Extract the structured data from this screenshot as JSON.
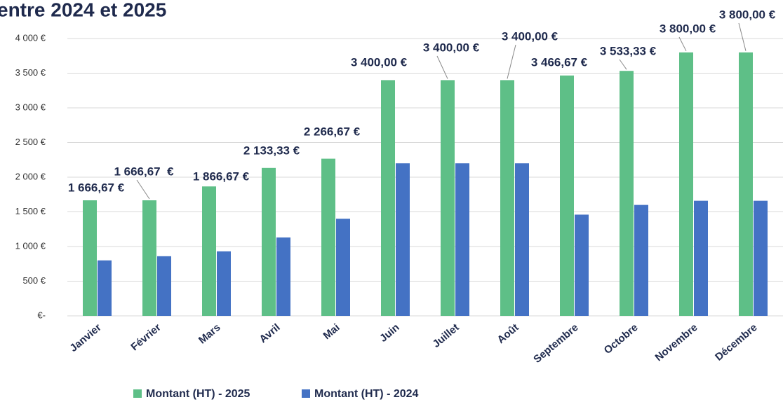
{
  "chart_data": {
    "type": "bar",
    "title": "entre 2024 et 2025",
    "categories": [
      "Janvier",
      "Février",
      "Mars",
      "Avril",
      "Mai",
      "Juin",
      "Juillet",
      "Août",
      "Septembre",
      "Octobre",
      "Novembre",
      "Décembre"
    ],
    "series": [
      {
        "name": "Montant (HT) - 2025",
        "color": "#5ebf87",
        "values": [
          1666.67,
          1666.67,
          1866.67,
          2133.33,
          2266.67,
          3400,
          3400,
          3400,
          3466.67,
          3533.33,
          3800,
          3800
        ],
        "value_labels": [
          "1 666,67 €",
          "1 666,67  €",
          "1 866,67 €",
          "2 133,33 €",
          "2 266,67 €",
          "3 400,00 €",
          "3 400,00 €",
          "3 400,00 €",
          "3 466,67 €",
          "3 533,33 €",
          "3 800,00 €",
          "3 800,00 €"
        ]
      },
      {
        "name": "Montant (HT) - 2024",
        "color": "#4472c4",
        "values": [
          800,
          860,
          930,
          1130,
          1400,
          2200,
          2200,
          2200,
          1460,
          1600,
          1660,
          1660
        ]
      }
    ],
    "ylim": [
      0,
      4000
    ],
    "yticks": [
      {
        "value": 0,
        "label": "€-"
      },
      {
        "value": 500,
        "label": "500 €"
      },
      {
        "value": 1000,
        "label": "1 000 €"
      },
      {
        "value": 1500,
        "label": "1 500 €"
      },
      {
        "value": 2000,
        "label": "2 000  €"
      },
      {
        "value": 2500,
        "label": "2 500 €"
      },
      {
        "value": 3000,
        "label": "3 000 €"
      },
      {
        "value": 3500,
        "label": "3 500 €"
      },
      {
        "value": 4000,
        "label": "4 000 €"
      }
    ],
    "grid": true,
    "legend": "bottom"
  }
}
